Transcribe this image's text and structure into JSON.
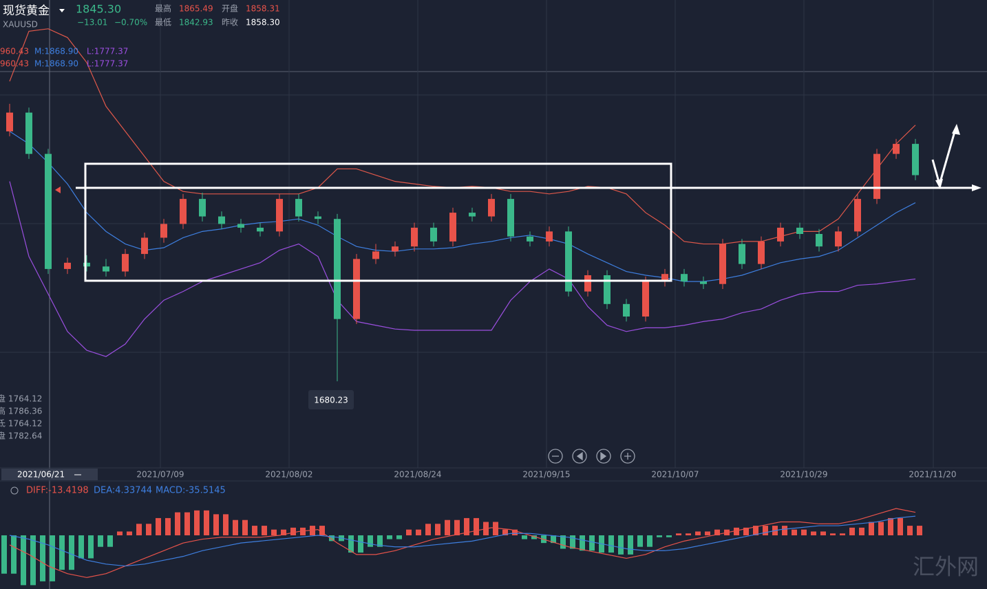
{
  "header": {
    "title": "现货黄金",
    "symbol": "XAUUSD",
    "price": "1845.30",
    "change": "−13.01",
    "change_pct": "−0.70%",
    "high_label": "最高",
    "high": "1865.49",
    "open_label": "开盘",
    "open": "1858.31",
    "low_label": "最低",
    "low": "1842.93",
    "prev_label": "昨收",
    "prev": "1858.30"
  },
  "chart_data": {
    "type": "candlestick",
    "open": [
      1880,
      1895,
      1862,
      1770,
      1775,
      1772,
      1768,
      1782,
      1795,
      1806,
      1826,
      1812,
      1806,
      1803,
      1800,
      1826,
      1812,
      1810,
      1730,
      1778,
      1784,
      1788,
      1803,
      1792,
      1815,
      1812,
      1826,
      1796,
      1792,
      1800,
      1752,
      1765,
      1742,
      1732,
      1760,
      1766,
      1760,
      1758,
      1790,
      1774,
      1792,
      1803,
      1798,
      1788,
      1800,
      1826,
      1862,
      1870
    ],
    "high": [
      1902,
      1899,
      1866,
      1779,
      1781,
      1778,
      1786,
      1799,
      1810,
      1830,
      1831,
      1816,
      1810,
      1807,
      1830,
      1830,
      1816,
      1814,
      1782,
      1790,
      1792,
      1807,
      1807,
      1819,
      1819,
      1830,
      1830,
      1800,
      1804,
      1804,
      1769,
      1769,
      1746,
      1764,
      1770,
      1770,
      1764,
      1794,
      1794,
      1796,
      1807,
      1807,
      1802,
      1804,
      1830,
      1866,
      1874,
      1874
    ],
    "low": [
      1876,
      1858,
      1766,
      1766,
      1768,
      1764,
      1764,
      1778,
      1791,
      1802,
      1808,
      1802,
      1799,
      1796,
      1796,
      1808,
      1806,
      1680.23,
      1726,
      1774,
      1780,
      1784,
      1788,
      1788,
      1808,
      1808,
      1792,
      1788,
      1788,
      1748,
      1748,
      1738,
      1728,
      1728,
      1756,
      1756,
      1754,
      1754,
      1770,
      1770,
      1788,
      1794,
      1784,
      1784,
      1796,
      1822,
      1858,
      1841
    ],
    "close": [
      1895,
      1862,
      1770,
      1775,
      1772,
      1768,
      1782,
      1795,
      1806,
      1826,
      1812,
      1806,
      1803,
      1800,
      1826,
      1812,
      1810,
      1730,
      1778,
      1784,
      1788,
      1803,
      1792,
      1815,
      1812,
      1826,
      1796,
      1792,
      1800,
      1752,
      1765,
      1742,
      1732,
      1760,
      1766,
      1760,
      1758,
      1790,
      1774,
      1792,
      1803,
      1798,
      1788,
      1800,
      1826,
      1862,
      1870,
      1845
    ],
    "bands": {
      "upper": [
        1920,
        1960,
        1962,
        1955,
        1935,
        1900,
        1880,
        1860,
        1840,
        1832,
        1830,
        1830,
        1830,
        1830,
        1830,
        1830,
        1835,
        1850,
        1850,
        1845,
        1840,
        1838,
        1836,
        1835,
        1836,
        1835,
        1832,
        1832,
        1830,
        1832,
        1836,
        1835,
        1830,
        1815,
        1805,
        1792,
        1790,
        1790,
        1792,
        1792,
        1796,
        1800,
        1800,
        1810,
        1830,
        1850,
        1870,
        1885
      ],
      "middle": [
        1880,
        1870,
        1855,
        1838,
        1815,
        1800,
        1790,
        1785,
        1787,
        1795,
        1800,
        1802,
        1805,
        1807,
        1808,
        1810,
        1805,
        1796,
        1788,
        1785,
        1784,
        1786,
        1786,
        1787,
        1790,
        1792,
        1795,
        1797,
        1794,
        1790,
        1782,
        1775,
        1768,
        1765,
        1763,
        1760,
        1760,
        1762,
        1765,
        1770,
        1775,
        1778,
        1780,
        1785,
        1795,
        1805,
        1815,
        1823
      ],
      "lower": [
        1840,
        1780,
        1750,
        1720,
        1705,
        1700,
        1710,
        1730,
        1745,
        1752,
        1760,
        1765,
        1770,
        1775,
        1785,
        1790,
        1780,
        1745,
        1728,
        1725,
        1722,
        1721,
        1721,
        1721,
        1721,
        1721,
        1745,
        1760,
        1770,
        1762,
        1740,
        1725,
        1720,
        1723,
        1723,
        1725,
        1728,
        1730,
        1735,
        1738,
        1745,
        1750,
        1752,
        1752,
        1757,
        1758,
        1760,
        1762
      ]
    },
    "ylim": [
      1611,
      1985
    ],
    "band_legend": [
      "960.43",
      "M:1868.90",
      "L:1777.37"
    ],
    "info": [
      "盘 1764.12",
      "高 1786.36",
      "氐 1764.12",
      "盘 1782.64"
    ],
    "crosshair_date": "2021/06/21",
    "x_labels": [
      "2021/07/09",
      "2021/08/02",
      "2021/08/24",
      "2021/09/15",
      "2021/10/07",
      "2021/10/29",
      "2021/11/20"
    ]
  },
  "macd": {
    "legend": [
      "DIFF:-13.4198",
      "DEA:4.33744",
      "MACD:-35.5145"
    ],
    "histogram": [
      -20,
      -26,
      -24,
      -18,
      -12,
      -6,
      2,
      6,
      9,
      12,
      13,
      11,
      8,
      5,
      3,
      4,
      5,
      -3,
      -9,
      -6,
      -2,
      3,
      6,
      8,
      9,
      7,
      3,
      -2,
      -4,
      -7,
      -8,
      -9,
      -10,
      -6,
      -1,
      1,
      2,
      3,
      4,
      5,
      5,
      3,
      2,
      1,
      4,
      7,
      9,
      5
    ],
    "diff": [
      -5,
      -10,
      -16,
      -20,
      -22,
      -20,
      -16,
      -12,
      -8,
      -4,
      -2,
      -1,
      -1,
      -1,
      0,
      2,
      3,
      -4,
      -10,
      -10,
      -8,
      -5,
      -2,
      0,
      2,
      4,
      3,
      0,
      -3,
      -6,
      -8,
      -10,
      -12,
      -10,
      -6,
      -3,
      -1,
      1,
      3,
      5,
      7,
      7,
      6,
      6,
      8,
      11,
      14,
      12
    ],
    "dea": [
      0,
      -2,
      -5,
      -9,
      -13,
      -15,
      -16,
      -15,
      -13,
      -11,
      -8,
      -6,
      -4,
      -3,
      -2,
      -1,
      0,
      -1,
      -3,
      -5,
      -6,
      -6,
      -5,
      -4,
      -3,
      -1,
      1,
      1,
      0,
      -1,
      -3,
      -5,
      -7,
      -8,
      -8,
      -7,
      -5,
      -3,
      -1,
      1,
      3,
      4,
      5,
      5,
      6,
      7,
      9,
      10
    ],
    "ylim": [
      -28,
      28
    ]
  },
  "watermark": "汇外网"
}
